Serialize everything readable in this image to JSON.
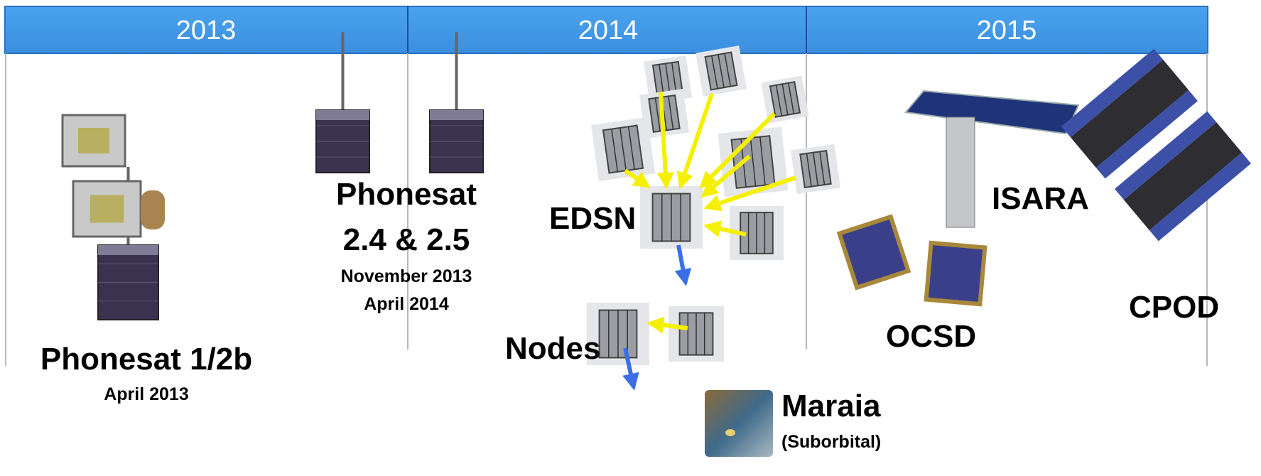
{
  "timeline": {
    "years": [
      "2013",
      "2014",
      "2015"
    ]
  },
  "missions": [
    {
      "name": "Phonesat 1/2b",
      "dates": [
        "April 2013"
      ]
    },
    {
      "name_lines": [
        "Phonesat",
        "2.4 & 2.5"
      ],
      "dates": [
        "November 2013",
        "April 2014"
      ]
    },
    {
      "name": "EDSN"
    },
    {
      "name": "Nodes"
    },
    {
      "name": "Maraia",
      "note": "(Suborbital)"
    },
    {
      "name": "ISARA"
    },
    {
      "name": "OCSD"
    },
    {
      "name": "CPOD"
    }
  ]
}
